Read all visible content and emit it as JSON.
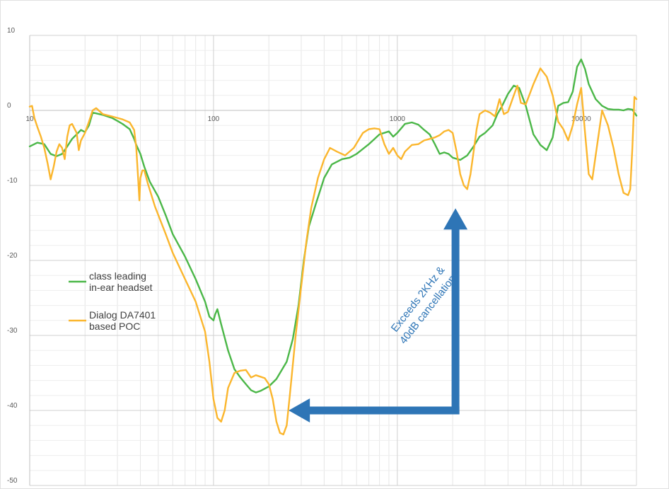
{
  "chart_data": {
    "type": "line",
    "title": "",
    "xlabel": "",
    "ylabel": "",
    "x_scale": "log",
    "xlim": [
      10,
      20000
    ],
    "ylim": [
      -50,
      10
    ],
    "grid": true,
    "legend_position": "left-center",
    "x_ticks": [
      {
        "value": 10,
        "label": "10"
      },
      {
        "value": 100,
        "label": "100"
      },
      {
        "value": 1000,
        "label": "1000"
      },
      {
        "value": 10000,
        "label": "10000"
      }
    ],
    "y_ticks": [
      {
        "value": 10,
        "label": "10"
      },
      {
        "value": 0,
        "label": "0"
      },
      {
        "value": -10,
        "label": "-10"
      },
      {
        "value": -20,
        "label": "-20"
      },
      {
        "value": -30,
        "label": "-30"
      },
      {
        "value": -40,
        "label": "-40"
      },
      {
        "value": -50,
        "label": "-50"
      }
    ],
    "series": [
      {
        "name": "class leading in-ear headset",
        "legend_lines": [
          "class leading",
          "in-ear headset"
        ],
        "color": "#4bb748",
        "points": [
          [
            10,
            -4.8
          ],
          [
            11,
            -4.3
          ],
          [
            12,
            -4.5
          ],
          [
            13,
            -5.8
          ],
          [
            14,
            -6.1
          ],
          [
            15,
            -5.8
          ],
          [
            16,
            -4.8
          ],
          [
            17,
            -3.8
          ],
          [
            18,
            -3.2
          ],
          [
            19,
            -2.6
          ],
          [
            20,
            -2.9
          ],
          [
            21,
            -2.0
          ],
          [
            22,
            -0.3
          ],
          [
            23,
            -0.4
          ],
          [
            25,
            -0.6
          ],
          [
            28,
            -1.0
          ],
          [
            30,
            -1.4
          ],
          [
            32,
            -1.8
          ],
          [
            35,
            -2.5
          ],
          [
            37,
            -3.8
          ],
          [
            38,
            -4.6
          ],
          [
            40,
            -5.8
          ],
          [
            42,
            -7.5
          ],
          [
            45,
            -9.5
          ],
          [
            50,
            -11.5
          ],
          [
            55,
            -14.0
          ],
          [
            60,
            -16.5
          ],
          [
            70,
            -19.5
          ],
          [
            80,
            -22.5
          ],
          [
            90,
            -25.5
          ],
          [
            95,
            -27.5
          ],
          [
            100,
            -28.0
          ],
          [
            102,
            -27.2
          ],
          [
            105,
            -26.5
          ],
          [
            110,
            -28.5
          ],
          [
            120,
            -32.0
          ],
          [
            130,
            -34.5
          ],
          [
            140,
            -35.6
          ],
          [
            150,
            -36.5
          ],
          [
            160,
            -37.3
          ],
          [
            170,
            -37.6
          ],
          [
            180,
            -37.4
          ],
          [
            200,
            -36.8
          ],
          [
            220,
            -35.8
          ],
          [
            250,
            -33.5
          ],
          [
            270,
            -30.5
          ],
          [
            290,
            -26.0
          ],
          [
            310,
            -20.0
          ],
          [
            330,
            -15.5
          ],
          [
            360,
            -12.5
          ],
          [
            400,
            -9.0
          ],
          [
            440,
            -7.2
          ],
          [
            500,
            -6.5
          ],
          [
            550,
            -6.3
          ],
          [
            600,
            -5.8
          ],
          [
            700,
            -4.5
          ],
          [
            800,
            -3.2
          ],
          [
            900,
            -2.8
          ],
          [
            950,
            -3.5
          ],
          [
            1000,
            -3.0
          ],
          [
            1100,
            -1.8
          ],
          [
            1200,
            -1.6
          ],
          [
            1300,
            -1.9
          ],
          [
            1400,
            -2.6
          ],
          [
            1500,
            -3.2
          ],
          [
            1600,
            -4.5
          ],
          [
            1700,
            -5.8
          ],
          [
            1800,
            -5.6
          ],
          [
            1900,
            -5.8
          ],
          [
            2000,
            -6.3
          ],
          [
            2200,
            -6.6
          ],
          [
            2400,
            -6.0
          ],
          [
            2600,
            -4.8
          ],
          [
            2800,
            -3.5
          ],
          [
            3000,
            -3.0
          ],
          [
            3300,
            -2.0
          ],
          [
            3500,
            -0.5
          ],
          [
            3700,
            0.5
          ],
          [
            4000,
            2.2
          ],
          [
            4300,
            3.3
          ],
          [
            4600,
            3.0
          ],
          [
            5000,
            0.6
          ],
          [
            5500,
            -3.2
          ],
          [
            6000,
            -4.6
          ],
          [
            6500,
            -5.3
          ],
          [
            7000,
            -3.6
          ],
          [
            7500,
            0.6
          ],
          [
            8000,
            1.0
          ],
          [
            8500,
            1.1
          ],
          [
            9000,
            2.5
          ],
          [
            9500,
            5.8
          ],
          [
            10000,
            6.8
          ],
          [
            10500,
            5.5
          ],
          [
            11000,
            3.5
          ],
          [
            12000,
            1.5
          ],
          [
            13000,
            0.6
          ],
          [
            14000,
            0.2
          ],
          [
            15000,
            0.1
          ],
          [
            16000,
            0.1
          ],
          [
            17000,
            0.0
          ],
          [
            18000,
            0.2
          ],
          [
            19000,
            0.1
          ],
          [
            20000,
            -0.7
          ]
        ]
      },
      {
        "name": "Dialog DA7401 based POC",
        "legend_lines": [
          "Dialog DA7401",
          "based POC"
        ],
        "color": "#fbb62d",
        "points": [
          [
            10,
            0.5
          ],
          [
            10.3,
            0.6
          ],
          [
            10.6,
            -1.0
          ],
          [
            11,
            -2.2
          ],
          [
            11.5,
            -3.5
          ],
          [
            12,
            -5.0
          ],
          [
            12.5,
            -7.0
          ],
          [
            13,
            -9.2
          ],
          [
            13.5,
            -7.5
          ],
          [
            14,
            -5.5
          ],
          [
            14.5,
            -4.5
          ],
          [
            15,
            -5.0
          ],
          [
            15.5,
            -6.5
          ],
          [
            16,
            -3.5
          ],
          [
            16.5,
            -2.0
          ],
          [
            17,
            -1.8
          ],
          [
            18,
            -3.0
          ],
          [
            18.5,
            -5.3
          ],
          [
            19,
            -4.0
          ],
          [
            20,
            -3.0
          ],
          [
            21,
            -1.5
          ],
          [
            22,
            0.0
          ],
          [
            23,
            0.3
          ],
          [
            25,
            -0.5
          ],
          [
            28,
            -0.8
          ],
          [
            30,
            -1.0
          ],
          [
            32,
            -1.2
          ],
          [
            35,
            -1.6
          ],
          [
            37,
            -2.6
          ],
          [
            38,
            -5.0
          ],
          [
            39,
            -9.5
          ],
          [
            39.5,
            -12.0
          ],
          [
            40,
            -9.0
          ],
          [
            41,
            -8.0
          ],
          [
            42,
            -8.0
          ],
          [
            44,
            -9.8
          ],
          [
            48,
            -12.8
          ],
          [
            55,
            -16.5
          ],
          [
            60,
            -19.0
          ],
          [
            70,
            -22.5
          ],
          [
            80,
            -25.5
          ],
          [
            90,
            -29.5
          ],
          [
            95,
            -33.5
          ],
          [
            100,
            -38.5
          ],
          [
            105,
            -41.0
          ],
          [
            110,
            -41.5
          ],
          [
            115,
            -40.0
          ],
          [
            120,
            -37.0
          ],
          [
            130,
            -35.0
          ],
          [
            140,
            -34.7
          ],
          [
            150,
            -34.6
          ],
          [
            160,
            -35.6
          ],
          [
            170,
            -35.3
          ],
          [
            180,
            -35.5
          ],
          [
            190,
            -35.7
          ],
          [
            200,
            -36.5
          ],
          [
            210,
            -38.5
          ],
          [
            220,
            -41.5
          ],
          [
            230,
            -43.0
          ],
          [
            240,
            -43.2
          ],
          [
            250,
            -42.0
          ],
          [
            260,
            -38.0
          ],
          [
            280,
            -30.0
          ],
          [
            300,
            -23.5
          ],
          [
            320,
            -17.5
          ],
          [
            340,
            -13.0
          ],
          [
            370,
            -9.0
          ],
          [
            400,
            -6.5
          ],
          [
            430,
            -5.0
          ],
          [
            470,
            -5.5
          ],
          [
            520,
            -6.0
          ],
          [
            580,
            -5.0
          ],
          [
            650,
            -3.0
          ],
          [
            700,
            -2.5
          ],
          [
            750,
            -2.4
          ],
          [
            800,
            -2.5
          ],
          [
            850,
            -4.5
          ],
          [
            900,
            -5.8
          ],
          [
            950,
            -5.0
          ],
          [
            1000,
            -6.0
          ],
          [
            1050,
            -6.5
          ],
          [
            1100,
            -5.5
          ],
          [
            1200,
            -4.6
          ],
          [
            1300,
            -4.5
          ],
          [
            1400,
            -4.0
          ],
          [
            1500,
            -3.8
          ],
          [
            1600,
            -3.6
          ],
          [
            1700,
            -3.3
          ],
          [
            1800,
            -2.8
          ],
          [
            1900,
            -2.6
          ],
          [
            2000,
            -3.0
          ],
          [
            2100,
            -5.5
          ],
          [
            2200,
            -8.5
          ],
          [
            2300,
            -10.0
          ],
          [
            2400,
            -10.5
          ],
          [
            2500,
            -8.5
          ],
          [
            2600,
            -5.5
          ],
          [
            2700,
            -2.5
          ],
          [
            2800,
            -0.5
          ],
          [
            3000,
            0.0
          ],
          [
            3200,
            -0.3
          ],
          [
            3400,
            -0.8
          ],
          [
            3600,
            1.5
          ],
          [
            3800,
            -0.5
          ],
          [
            4000,
            -0.2
          ],
          [
            4300,
            2.0
          ],
          [
            4500,
            3.3
          ],
          [
            4700,
            1.0
          ],
          [
            5000,
            0.8
          ],
          [
            5500,
            3.5
          ],
          [
            6000,
            5.6
          ],
          [
            6500,
            4.5
          ],
          [
            7000,
            2.0
          ],
          [
            7500,
            -1.5
          ],
          [
            8000,
            -2.5
          ],
          [
            8500,
            -4.0
          ],
          [
            9000,
            -2.0
          ],
          [
            9500,
            0.8
          ],
          [
            10000,
            3.0
          ],
          [
            10500,
            -3.0
          ],
          [
            11000,
            -8.5
          ],
          [
            11500,
            -9.2
          ],
          [
            12000,
            -6.0
          ],
          [
            13000,
            0.0
          ],
          [
            14000,
            -2.0
          ],
          [
            15000,
            -5.0
          ],
          [
            16000,
            -8.5
          ],
          [
            17000,
            -11.0
          ],
          [
            18000,
            -11.3
          ],
          [
            18500,
            -10.5
          ],
          [
            19000,
            -5.0
          ],
          [
            19500,
            1.8
          ],
          [
            20000,
            1.5
          ]
        ]
      }
    ],
    "annotation": {
      "lines": [
        "Exceeds 2KHz &",
        "40dB cancellation"
      ],
      "color": "#2e75b6",
      "rotation_deg": -52,
      "arrow_corner": [
        2000,
        -40
      ],
      "arrow_vertical_to": [
        2000,
        -14
      ],
      "arrow_horizontal_to": [
        280,
        -40
      ]
    }
  }
}
